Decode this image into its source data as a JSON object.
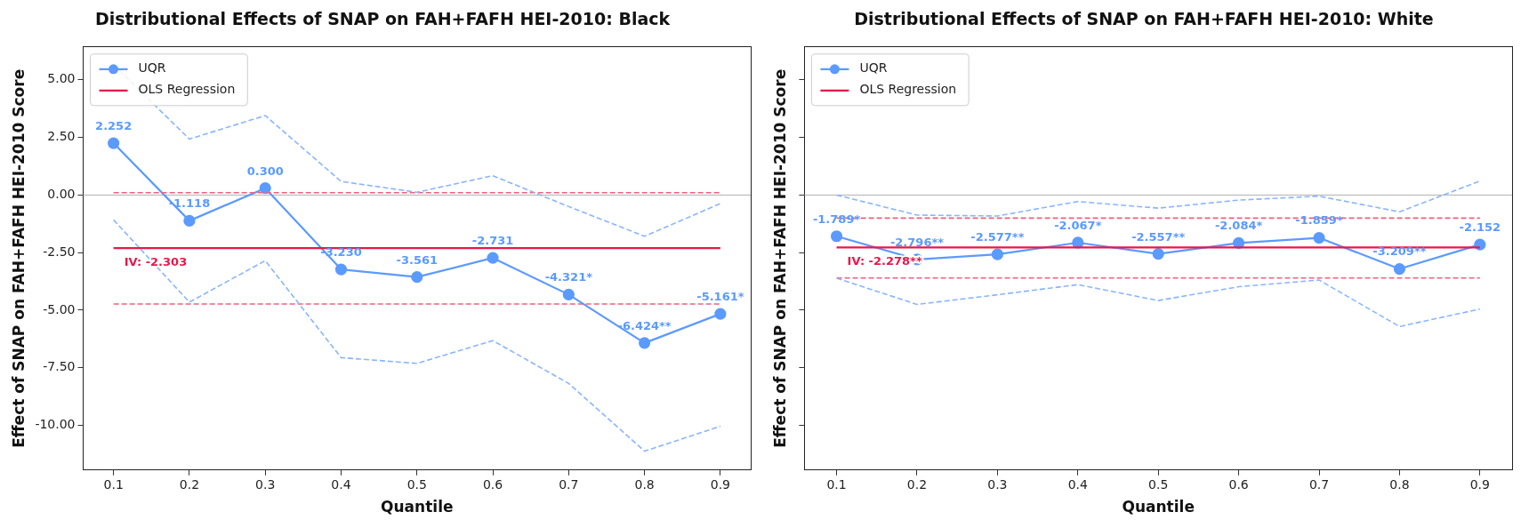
{
  "chart_data": [
    {
      "type": "line",
      "title": "Distributional Effects of SNAP on FAH+FAFH HEI-2010: Black",
      "xlabel": "Quantile",
      "ylabel": "Effect of SNAP on FAH+FAFH HEI-2010 Score",
      "x": [
        0.1,
        0.2,
        0.3,
        0.4,
        0.5,
        0.6,
        0.7,
        0.8,
        0.9
      ],
      "series": [
        {
          "name": "UQR",
          "color": "#5b9aff",
          "marker": "circle",
          "line_style": "solid",
          "values": [
            2.252,
            -1.118,
            0.3,
            -3.23,
            -3.561,
            -2.731,
            -4.321,
            -6.424,
            -5.161
          ],
          "value_labels": [
            "2.252",
            "-1.118",
            "0.300",
            "-3.230",
            "-3.561",
            "-2.731",
            "-4.321*",
            "-6.424**",
            "-5.161*"
          ]
        },
        {
          "name": "OLS Regression",
          "color": "#e8174a",
          "line_style": "solid",
          "values": [
            -2.303,
            -2.303,
            -2.303,
            -2.303,
            -2.303,
            -2.303,
            -2.303,
            -2.303,
            -2.303
          ]
        },
        {
          "color": "#8ab5ff",
          "line_style": "dashed",
          "values": [
            5.65,
            2.43,
            3.45,
            0.59,
            0.12,
            0.84,
            -0.5,
            -1.79,
            -0.37
          ]
        },
        {
          "color": "#8ab5ff",
          "line_style": "dashed",
          "values": [
            -1.08,
            -4.65,
            -2.85,
            -7.06,
            -7.31,
            -6.32,
            -8.18,
            -11.12,
            -10.04
          ]
        },
        {
          "color": "#f0607f",
          "line_style": "dashed",
          "values": [
            0.1,
            0.1,
            0.1,
            0.1,
            0.1,
            0.1,
            0.1,
            0.1,
            0.1
          ]
        },
        {
          "color": "#f0607f",
          "line_style": "dashed",
          "values": [
            -4.73,
            -4.73,
            -4.73,
            -4.73,
            -4.73,
            -4.73,
            -4.73,
            -4.73,
            -4.73
          ]
        }
      ],
      "xlim": [
        0.06,
        0.94
      ],
      "xticks": [
        0.1,
        0.2,
        0.3,
        0.4,
        0.5,
        0.6,
        0.7,
        0.8,
        0.9
      ],
      "ylim": [
        -11.94,
        6.43
      ],
      "yticks": [
        {
          "value": -10,
          "label": "-10.00"
        },
        {
          "value": -7.5,
          "label": "-7.50"
        },
        {
          "value": -5,
          "label": "-5.00"
        },
        {
          "value": -2.5,
          "label": "-2.50"
        },
        {
          "value": 0,
          "label": "0.00"
        },
        {
          "value": 2.5,
          "label": "2.50"
        },
        {
          "value": 5,
          "label": "5.00"
        }
      ],
      "ref_lines": [
        {
          "axis": "y",
          "value": 0,
          "color": "#b0b0b0"
        }
      ],
      "annotations": [
        "IV: -2.303"
      ],
      "legend": "top left",
      "grid": false
    },
    {
      "type": "line",
      "title": "Distributional Effects of SNAP on FAH+FAFH HEI-2010: White",
      "xlabel": "Quantile",
      "ylabel": "Effect of SNAP on FAH+FAFH HEI-2010 Score",
      "x": [
        0.1,
        0.2,
        0.3,
        0.4,
        0.5,
        0.6,
        0.7,
        0.8,
        0.9
      ],
      "series": [
        {
          "name": "UQR",
          "color": "#5b9aff",
          "marker": "circle",
          "line_style": "solid",
          "values": [
            -1.789,
            -2.796,
            -2.577,
            -2.067,
            -2.557,
            -2.084,
            -1.859,
            -3.209,
            -2.152
          ],
          "value_labels": [
            "-1.789*",
            "-2.796**",
            "-2.577**",
            "-2.067*",
            "-2.557**",
            "-2.084*",
            "-1.859*",
            "-3.209**",
            "-2.152"
          ]
        },
        {
          "name": "OLS Regression",
          "color": "#e8174a",
          "line_style": "solid",
          "values": [
            -2.278,
            -2.278,
            -2.278,
            -2.278,
            -2.278,
            -2.278,
            -2.278,
            -2.278,
            -2.278
          ]
        },
        {
          "color": "#8ab5ff",
          "line_style": "dashed",
          "values": [
            0.0,
            -0.87,
            -0.91,
            -0.28,
            -0.57,
            -0.22,
            -0.05,
            -0.73,
            0.61
          ]
        },
        {
          "color": "#8ab5ff",
          "line_style": "dashed",
          "values": [
            -3.61,
            -4.75,
            -4.33,
            -3.89,
            -4.58,
            -3.98,
            -3.69,
            -5.71,
            -4.95
          ]
        },
        {
          "color": "#f0607f",
          "line_style": "dashed",
          "values": [
            -1.0,
            -1.0,
            -1.0,
            -1.0,
            -1.0,
            -1.0,
            -1.0,
            -1.0,
            -1.0
          ]
        },
        {
          "color": "#f0607f",
          "line_style": "dashed",
          "values": [
            -3.6,
            -3.6,
            -3.6,
            -3.6,
            -3.6,
            -3.6,
            -3.6,
            -3.6,
            -3.6
          ]
        }
      ],
      "xlim": [
        0.06,
        0.94
      ],
      "xticks": [
        0.1,
        0.2,
        0.3,
        0.4,
        0.5,
        0.6,
        0.7,
        0.8,
        0.9
      ],
      "ylim": [
        -11.94,
        6.43
      ],
      "yticks": [
        {
          "value": -10,
          "label": null
        },
        {
          "value": -7.5,
          "label": null
        },
        {
          "value": -5,
          "label": null
        },
        {
          "value": -2.5,
          "label": null
        },
        {
          "value": 0,
          "label": null
        },
        {
          "value": 2.5,
          "label": null
        },
        {
          "value": 5,
          "label": null
        }
      ],
      "tick_labels": "x",
      "ref_lines": [
        {
          "axis": "y",
          "value": 0,
          "color": "#b0b0b0"
        }
      ],
      "annotations": [
        "IV: -2.278**"
      ],
      "legend": "top left",
      "grid": false
    }
  ]
}
